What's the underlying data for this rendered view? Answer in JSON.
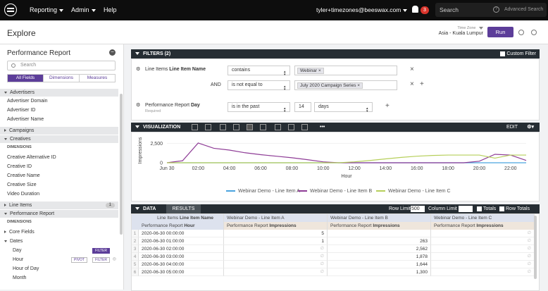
{
  "topbar": {
    "nav": [
      "Reporting",
      "Admin",
      "Help"
    ],
    "user": "tyler+timezones@beeswax.com",
    "notification_count": "3",
    "search_placeholder": "Search",
    "advanced_search": "Advanced Search"
  },
  "header": {
    "title": "Explore",
    "timezone_label": "Time Zone",
    "timezone_value": "Asia - Kuala Lumpur",
    "run_label": "Run"
  },
  "sidebar": {
    "title": "Performance Report",
    "search_placeholder": "Search",
    "tabs": [
      "All Fields",
      "Dimensions",
      "Measures"
    ],
    "items": [
      {
        "label": "Advertisers",
        "kind": "group-open"
      },
      {
        "label": "Advertiser Domain",
        "kind": "item"
      },
      {
        "label": "Advertiser ID",
        "kind": "item"
      },
      {
        "label": "Advertiser Name",
        "kind": "item"
      },
      {
        "label": "Campaigns",
        "kind": "group-closed"
      },
      {
        "label": "Creatives",
        "kind": "group-open"
      },
      {
        "label": "DIMENSIONS",
        "kind": "sub"
      },
      {
        "label": "Creative Alternative ID",
        "kind": "item"
      },
      {
        "label": "Creative ID",
        "kind": "item"
      },
      {
        "label": "Creative Name",
        "kind": "item"
      },
      {
        "label": "Creative Size",
        "kind": "item"
      },
      {
        "label": "Video Duration",
        "kind": "item"
      },
      {
        "label": "Line Items",
        "kind": "group-closed",
        "count": "1"
      },
      {
        "label": "Performance Report",
        "kind": "group-open"
      },
      {
        "label": "DIMENSIONS",
        "kind": "sub"
      },
      {
        "label": "Core Fields",
        "kind": "item-closed"
      },
      {
        "label": "Dates",
        "kind": "item-open"
      },
      {
        "label": "Day",
        "kind": "item2",
        "buttons": [
          "FILTER"
        ]
      },
      {
        "label": "Hour",
        "kind": "item2",
        "buttons": [
          "PIVOT",
          "FILTER"
        ]
      },
      {
        "label": "Hour of Day",
        "kind": "item2"
      },
      {
        "label": "Month",
        "kind": "item2"
      }
    ]
  },
  "filters": {
    "title": "FILTERS (2)",
    "custom_filter": "Custom Filter",
    "row1": {
      "field_prefix": "Line Items ",
      "field_bold": "Line Item Name",
      "op": "contains",
      "value": "Webinar"
    },
    "row2": {
      "and": "AND",
      "op": "is not equal to",
      "value": "July 2020 Campaign Series"
    },
    "row3": {
      "field_prefix": "Performance Report ",
      "field_bold": "Day",
      "required": "Required",
      "op": "is in the past",
      "num": "14",
      "unit": "days"
    }
  },
  "visualization": {
    "title": "VISUALIZATION",
    "edit": "EDIT"
  },
  "chart_data": {
    "type": "line",
    "ylabel": "Impressions",
    "xlabel": "Hour",
    "x": [
      "Jun 30",
      "01:00",
      "02:00",
      "03:00",
      "04:00",
      "05:00",
      "06:00",
      "07:00",
      "08:00",
      "09:00",
      "10:00",
      "11:00",
      "12:00",
      "13:00",
      "14:00",
      "15:00",
      "16:00",
      "17:00",
      "18:00",
      "19:00",
      "20:00",
      "21:00",
      "22:00",
      "23:00"
    ],
    "xticks": [
      "Jun 30",
      "02:00",
      "04:00",
      "06:00",
      "08:00",
      "10:00",
      "12:00",
      "14:00",
      "16:00",
      "18:00",
      "20:00",
      "22:00"
    ],
    "yticks": [
      "0",
      "2,500"
    ],
    "ylim": [
      0,
      3200
    ],
    "series": [
      {
        "name": "Webinar Demo - Line Item A",
        "color": "#4aa3df",
        "values": [
          5,
          1,
          0,
          0,
          0,
          0,
          0,
          0,
          0,
          0,
          0,
          0,
          0,
          0,
          0,
          0,
          0,
          0,
          0,
          0,
          0,
          0,
          0,
          0
        ]
      },
      {
        "name": "Webinar Demo - Line Item B",
        "color": "#8e3c96",
        "values": [
          0,
          263,
          2562,
          1878,
          1644,
          1300,
          1050,
          850,
          650,
          400,
          120,
          0,
          0,
          0,
          0,
          0,
          0,
          0,
          0,
          0,
          200,
          1100,
          1000,
          300
        ]
      },
      {
        "name": "Webinar Demo - Line Item C",
        "color": "#b6cf5a",
        "values": [
          0,
          0,
          0,
          0,
          0,
          0,
          0,
          0,
          0,
          0,
          0,
          0,
          120,
          300,
          500,
          700,
          850,
          950,
          1000,
          1000,
          1000,
          600,
          1000,
          1000
        ]
      }
    ]
  },
  "data": {
    "title": "DATA",
    "results_tab": "RESULTS",
    "row_limit_label": "Row Limit",
    "row_limit_value": "500",
    "column_limit_label": "Column Limit",
    "totals": "Totals",
    "row_totals": "Row Totals",
    "pivot_header_prefix": "Line Items ",
    "pivot_header_bold": "Line Item Name",
    "dim_header_prefix": "Performance Report ",
    "dim_header_bold": "Hour",
    "columns": [
      "Webinar Demo - Line Item A",
      "Webinar Demo - Line Item B",
      "Webinar Demo - Line Item C"
    ],
    "measure_prefix": "Performance Report ",
    "measure_bold": "Impressions",
    "rows": [
      {
        "n": "1",
        "hour": "2020-06-30 00:00:00",
        "a": "5",
        "b": "",
        "c": "∅"
      },
      {
        "n": "2",
        "hour": "2020-06-30 01:00:00",
        "a": "1",
        "b": "263",
        "c": "∅"
      },
      {
        "n": "3",
        "hour": "2020-06-30 02:00:00",
        "a": "∅",
        "b": "2,562",
        "c": "∅"
      },
      {
        "n": "4",
        "hour": "2020-06-30 03:00:00",
        "a": "∅",
        "b": "1,878",
        "c": "∅"
      },
      {
        "n": "5",
        "hour": "2020-06-30 04:00:00",
        "a": "∅",
        "b": "1,644",
        "c": "∅"
      },
      {
        "n": "6",
        "hour": "2020-06-30 05:00:00",
        "a": "∅",
        "b": "1,300",
        "c": "∅"
      }
    ]
  }
}
